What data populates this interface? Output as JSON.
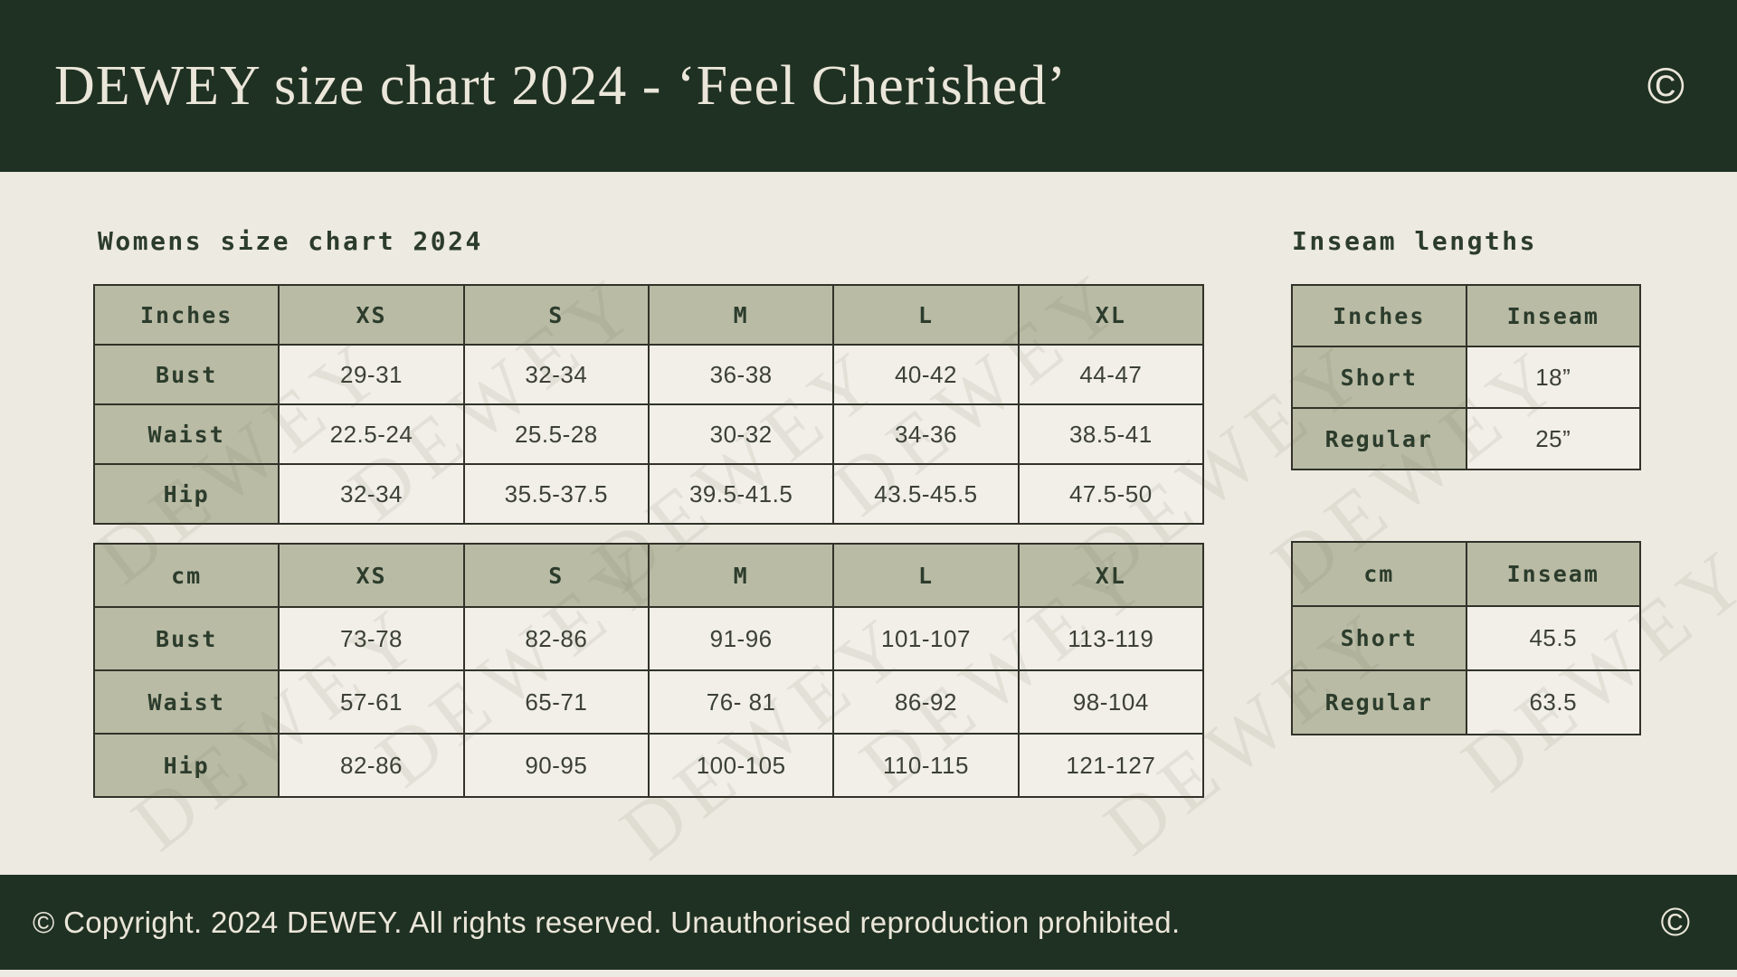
{
  "header": {
    "title": "DEWEY size chart 2024 - ‘Feel Cherished’",
    "copyright_symbol": "©"
  },
  "footer": {
    "text": "© Copyright. 2024 DEWEY. All rights reserved. Unauthorised reproduction prohibited.",
    "copyright_symbol": "©"
  },
  "watermark": {
    "text": "DEWEY"
  },
  "colors": {
    "green": "#1f3122",
    "cream": "#edeae2",
    "cell": "#f1efe7",
    "sage": "#b9bba5",
    "border": "#31332a",
    "ink": "#2c3c2c",
    "light": "#ebe6da"
  },
  "womens": {
    "heading": "Womens size chart 2024",
    "inches_table": {
      "columns": [
        "Inches",
        "XS",
        "S",
        "M",
        "L",
        "XL"
      ],
      "rows": [
        {
          "label": "Bust",
          "values": [
            "29-31",
            "32-34",
            "36-38",
            "40-42",
            "44-47"
          ]
        },
        {
          "label": "Waist",
          "values": [
            "22.5-24",
            "25.5-28",
            "30-32",
            "34-36",
            "38.5-41"
          ]
        },
        {
          "label": "Hip",
          "values": [
            "32-34",
            "35.5-37.5",
            "39.5-41.5",
            "43.5-45.5",
            "47.5-50"
          ]
        }
      ]
    },
    "cm_table": {
      "columns": [
        "cm",
        "XS",
        "S",
        "M",
        "L",
        "XL"
      ],
      "rows": [
        {
          "label": "Bust",
          "values": [
            "73-78",
            "82-86",
            "91-96",
            "101-107",
            "113-119"
          ]
        },
        {
          "label": "Waist",
          "values": [
            "57-61",
            "65-71",
            "76- 81",
            "86-92",
            "98-104"
          ]
        },
        {
          "label": "Hip",
          "values": [
            "82-86",
            "90-95",
            "100-105",
            "110-115",
            "121-127"
          ]
        }
      ]
    }
  },
  "inseam": {
    "heading": "Inseam lengths",
    "inches_table": {
      "columns": [
        "Inches",
        "Inseam"
      ],
      "rows": [
        {
          "label": "Short",
          "values": [
            "18”"
          ]
        },
        {
          "label": "Regular",
          "values": [
            "25”"
          ]
        }
      ]
    },
    "cm_table": {
      "columns": [
        "cm",
        "Inseam"
      ],
      "rows": [
        {
          "label": "Short",
          "values": [
            "45.5"
          ]
        },
        {
          "label": "Regular",
          "values": [
            "63.5"
          ]
        }
      ]
    }
  }
}
